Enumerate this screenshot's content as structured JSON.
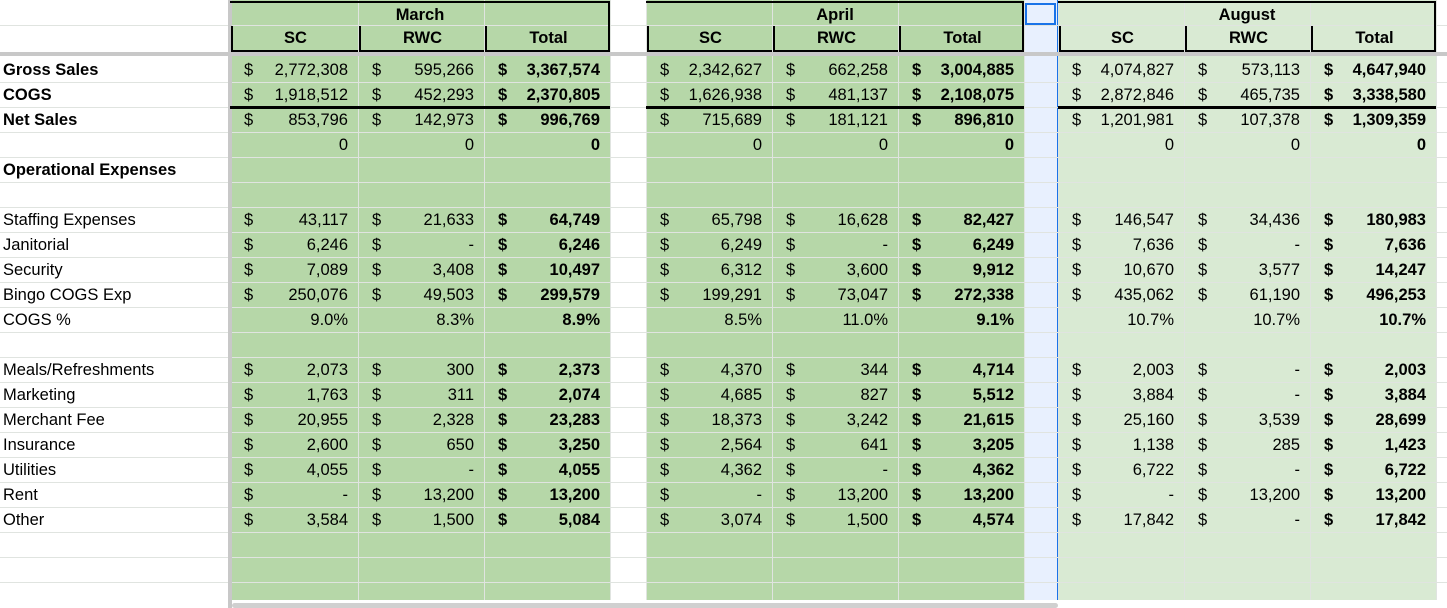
{
  "months": [
    "March",
    "April",
    "August"
  ],
  "subheaders": [
    "SC",
    "RWC",
    "Total"
  ],
  "rows": [
    {
      "label": "Gross Sales",
      "bold": true,
      "cells": [
        [
          "$",
          "2,772,308"
        ],
        [
          "$",
          "595,266"
        ],
        [
          "$",
          "3,367,574"
        ],
        [
          "$",
          "2,342,627"
        ],
        [
          "$",
          "662,258"
        ],
        [
          "$",
          "3,004,885"
        ],
        [
          "$",
          "4,074,827"
        ],
        [
          "$",
          "573,113"
        ],
        [
          "$",
          "4,647,940"
        ]
      ]
    },
    {
      "label": "COGS",
      "bold": true,
      "cells": [
        [
          "$",
          "1,918,512"
        ],
        [
          "$",
          "452,293"
        ],
        [
          "$",
          "2,370,805"
        ],
        [
          "$",
          "1,626,938"
        ],
        [
          "$",
          "481,137"
        ],
        [
          "$",
          "2,108,075"
        ],
        [
          "$",
          "2,872,846"
        ],
        [
          "$",
          "465,735"
        ],
        [
          "$",
          "3,338,580"
        ]
      ]
    },
    {
      "label": "Net Sales",
      "bold": true,
      "cells": [
        [
          "$",
          "853,796"
        ],
        [
          "$",
          "142,973"
        ],
        [
          "$",
          "996,769"
        ],
        [
          "$",
          "715,689"
        ],
        [
          "$",
          "181,121"
        ],
        [
          "$",
          "896,810"
        ],
        [
          "$",
          "1,201,981"
        ],
        [
          "$",
          "107,378"
        ],
        [
          "$",
          "1,309,359"
        ]
      ]
    },
    {
      "label": "",
      "cells": [
        [
          "",
          "0"
        ],
        [
          "",
          "0"
        ],
        [
          "",
          "0"
        ],
        [
          "",
          "0"
        ],
        [
          "",
          "0"
        ],
        [
          "",
          "0"
        ],
        [
          "",
          "0"
        ],
        [
          "",
          "0"
        ],
        [
          "",
          "0"
        ]
      ]
    },
    {
      "label": "Operational Expenses",
      "bold": true,
      "cells": []
    },
    {
      "label": "",
      "cells": []
    },
    {
      "label": "Staffing Expenses",
      "cells": [
        [
          "$",
          "43,117"
        ],
        [
          "$",
          "21,633"
        ],
        [
          "$",
          "64,749"
        ],
        [
          "$",
          "65,798"
        ],
        [
          "$",
          "16,628"
        ],
        [
          "$",
          "82,427"
        ],
        [
          "$",
          "146,547"
        ],
        [
          "$",
          "34,436"
        ],
        [
          "$",
          "180,983"
        ]
      ]
    },
    {
      "label": "Janitorial",
      "cells": [
        [
          "$",
          "6,246"
        ],
        [
          "$",
          "-"
        ],
        [
          "$",
          "6,246"
        ],
        [
          "$",
          "6,249"
        ],
        [
          "$",
          "-"
        ],
        [
          "$",
          "6,249"
        ],
        [
          "$",
          "7,636"
        ],
        [
          "$",
          "-"
        ],
        [
          "$",
          "7,636"
        ]
      ]
    },
    {
      "label": "Security",
      "cells": [
        [
          "$",
          "7,089"
        ],
        [
          "$",
          "3,408"
        ],
        [
          "$",
          "10,497"
        ],
        [
          "$",
          "6,312"
        ],
        [
          "$",
          "3,600"
        ],
        [
          "$",
          "9,912"
        ],
        [
          "$",
          "10,670"
        ],
        [
          "$",
          "3,577"
        ],
        [
          "$",
          "14,247"
        ]
      ]
    },
    {
      "label": "Bingo COGS Exp",
      "cells": [
        [
          "$",
          "250,076"
        ],
        [
          "$",
          "49,503"
        ],
        [
          "$",
          "299,579"
        ],
        [
          "$",
          "199,291"
        ],
        [
          "$",
          "73,047"
        ],
        [
          "$",
          "272,338"
        ],
        [
          "$",
          "435,062"
        ],
        [
          "$",
          "61,190"
        ],
        [
          "$",
          "496,253"
        ]
      ]
    },
    {
      "label": "COGS %",
      "cells": [
        [
          "",
          "9.0%"
        ],
        [
          "",
          "8.3%"
        ],
        [
          "",
          "8.9%"
        ],
        [
          "",
          "8.5%"
        ],
        [
          "",
          "11.0%"
        ],
        [
          "",
          "9.1%"
        ],
        [
          "",
          "10.7%"
        ],
        [
          "",
          "10.7%"
        ],
        [
          "",
          "10.7%"
        ]
      ]
    },
    {
      "label": "",
      "cells": []
    },
    {
      "label": "Meals/Refreshments",
      "cells": [
        [
          "$",
          "2,073"
        ],
        [
          "$",
          "300"
        ],
        [
          "$",
          "2,373"
        ],
        [
          "$",
          "4,370"
        ],
        [
          "$",
          "344"
        ],
        [
          "$",
          "4,714"
        ],
        [
          "$",
          "2,003"
        ],
        [
          "$",
          "-"
        ],
        [
          "$",
          "2,003"
        ]
      ]
    },
    {
      "label": "Marketing",
      "cells": [
        [
          "$",
          "1,763"
        ],
        [
          "$",
          "311"
        ],
        [
          "$",
          "2,074"
        ],
        [
          "$",
          "4,685"
        ],
        [
          "$",
          "827"
        ],
        [
          "$",
          "5,512"
        ],
        [
          "$",
          "3,884"
        ],
        [
          "$",
          "-"
        ],
        [
          "$",
          "3,884"
        ]
      ]
    },
    {
      "label": "Merchant Fee",
      "cells": [
        [
          "$",
          "20,955"
        ],
        [
          "$",
          "2,328"
        ],
        [
          "$",
          "23,283"
        ],
        [
          "$",
          "18,373"
        ],
        [
          "$",
          "3,242"
        ],
        [
          "$",
          "21,615"
        ],
        [
          "$",
          "25,160"
        ],
        [
          "$",
          "3,539"
        ],
        [
          "$",
          "28,699"
        ]
      ]
    },
    {
      "label": "Insurance",
      "cells": [
        [
          "$",
          "2,600"
        ],
        [
          "$",
          "650"
        ],
        [
          "$",
          "3,250"
        ],
        [
          "$",
          "2,564"
        ],
        [
          "$",
          "641"
        ],
        [
          "$",
          "3,205"
        ],
        [
          "$",
          "1,138"
        ],
        [
          "$",
          "285"
        ],
        [
          "$",
          "1,423"
        ]
      ]
    },
    {
      "label": "Utilities",
      "cells": [
        [
          "$",
          "4,055"
        ],
        [
          "$",
          "-"
        ],
        [
          "$",
          "4,055"
        ],
        [
          "$",
          "4,362"
        ],
        [
          "$",
          "-"
        ],
        [
          "$",
          "4,362"
        ],
        [
          "$",
          "6,722"
        ],
        [
          "$",
          "-"
        ],
        [
          "$",
          "6,722"
        ]
      ]
    },
    {
      "label": "Rent",
      "cells": [
        [
          "$",
          "-"
        ],
        [
          "$",
          "13,200"
        ],
        [
          "$",
          "13,200"
        ],
        [
          "$",
          "-"
        ],
        [
          "$",
          "13,200"
        ],
        [
          "$",
          "13,200"
        ],
        [
          "$",
          "-"
        ],
        [
          "$",
          "13,200"
        ],
        [
          "$",
          "13,200"
        ]
      ]
    },
    {
      "label": "Other",
      "cells": [
        [
          "$",
          "3,584"
        ],
        [
          "$",
          "1,500"
        ],
        [
          "$",
          "5,084"
        ],
        [
          "$",
          "3,074"
        ],
        [
          "$",
          "1,500"
        ],
        [
          "$",
          "4,574"
        ],
        [
          "$",
          "17,842"
        ],
        [
          "$",
          "-"
        ],
        [
          "$",
          "17,842"
        ]
      ]
    }
  ],
  "colors": {
    "green_dark": "#b6d7a8",
    "green_light": "#d9ead3",
    "selected_col": "#e8f0fe",
    "selection_border": "#1a73e8",
    "grid": "#e0e4e0"
  }
}
